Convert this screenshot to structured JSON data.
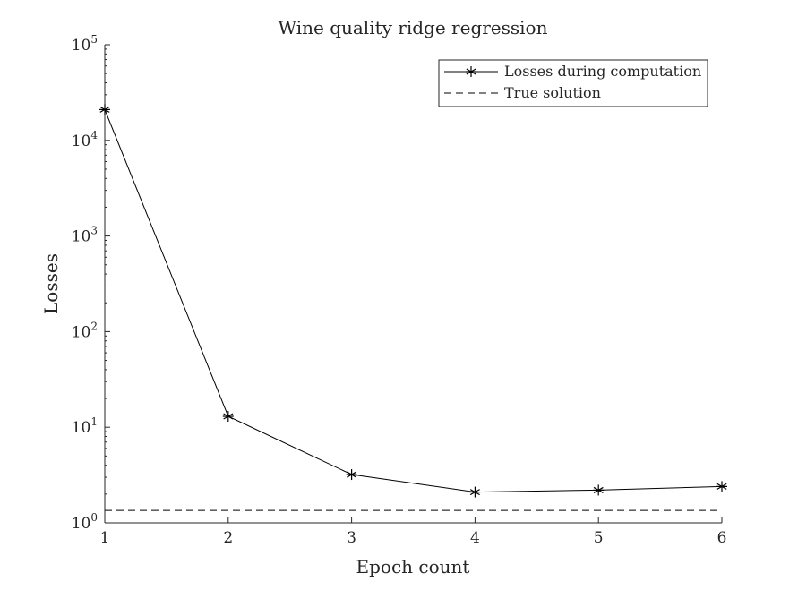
{
  "chart_data": {
    "type": "line",
    "title": "Wine quality ridge regression",
    "xlabel": "Epoch count",
    "ylabel": "Losses",
    "xlim": [
      1,
      6
    ],
    "ylim": [
      1,
      100000
    ],
    "yscale": "log",
    "grid": false,
    "legend_position": "top-right",
    "x_ticks": [
      1,
      2,
      3,
      4,
      5,
      6
    ],
    "y_ticks": [
      {
        "base": "10",
        "exp": "0",
        "value": 1
      },
      {
        "base": "10",
        "exp": "1",
        "value": 10
      },
      {
        "base": "10",
        "exp": "2",
        "value": 100
      },
      {
        "base": "10",
        "exp": "3",
        "value": 1000
      },
      {
        "base": "10",
        "exp": "4",
        "value": 10000
      },
      {
        "base": "10",
        "exp": "5",
        "value": 100000
      }
    ],
    "series": [
      {
        "name": "Losses during computation",
        "style": "solid-star",
        "color": "#000000",
        "x": [
          1,
          2,
          3,
          4,
          5,
          6
        ],
        "y": [
          21000,
          13,
          3.2,
          2.1,
          2.2,
          2.4
        ]
      },
      {
        "name": "True solution",
        "style": "dashed",
        "color": "#000000",
        "x": [
          1,
          6
        ],
        "y": [
          1.35,
          1.35
        ]
      }
    ]
  }
}
